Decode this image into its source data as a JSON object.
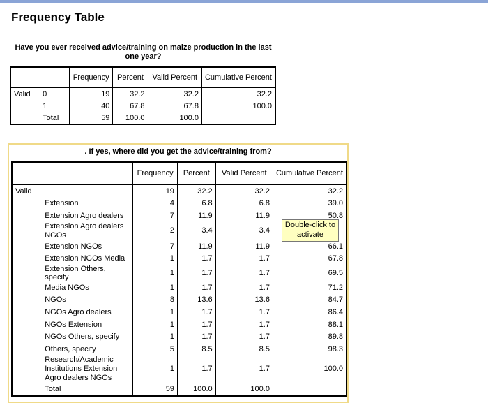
{
  "page_title": "Frequency Table",
  "table1": {
    "title": "Have you ever received advice/training on maize production in the last one year?",
    "headers": {
      "frequency": "Frequency",
      "percent": "Percent",
      "valid_percent": "Valid Percent",
      "cumulative_percent": "Cumulative Percent"
    },
    "group_label": "Valid",
    "rows": [
      {
        "category": "0",
        "frequency": "19",
        "percent": "32.2",
        "valid_percent": "32.2",
        "cumulative_percent": "32.2"
      },
      {
        "category": "1",
        "frequency": "40",
        "percent": "67.8",
        "valid_percent": "67.8",
        "cumulative_percent": "100.0"
      },
      {
        "category": "Total",
        "frequency": "59",
        "percent": "100.0",
        "valid_percent": "100.0",
        "cumulative_percent": ""
      }
    ]
  },
  "table2": {
    "title": ". If yes, where did you get the advice/training from?",
    "headers": {
      "frequency": "Frequency",
      "percent": "Percent",
      "valid_percent": "Valid Percent",
      "cumulative_percent": "Cumulative Percent"
    },
    "group_label": "Valid",
    "rows": [
      {
        "category": "",
        "frequency": "19",
        "percent": "32.2",
        "valid_percent": "32.2",
        "cumulative_percent": "32.2"
      },
      {
        "category": "Extension",
        "frequency": "4",
        "percent": "6.8",
        "valid_percent": "6.8",
        "cumulative_percent": "39.0"
      },
      {
        "category": "Extension Agro dealers",
        "frequency": "7",
        "percent": "11.9",
        "valid_percent": "11.9",
        "cumulative_percent": "50.8"
      },
      {
        "category": "Extension Agro dealers NGOs",
        "frequency": "2",
        "percent": "3.4",
        "valid_percent": "3.4",
        "cumulative_percent": ""
      },
      {
        "category": "Extension NGOs",
        "frequency": "7",
        "percent": "11.9",
        "valid_percent": "11.9",
        "cumulative_percent": "66.1"
      },
      {
        "category": "Extension NGOs Media",
        "frequency": "1",
        "percent": "1.7",
        "valid_percent": "1.7",
        "cumulative_percent": "67.8"
      },
      {
        "category": "Extension Others, specify",
        "frequency": "1",
        "percent": "1.7",
        "valid_percent": "1.7",
        "cumulative_percent": "69.5"
      },
      {
        "category": "Media NGOs",
        "frequency": "1",
        "percent": "1.7",
        "valid_percent": "1.7",
        "cumulative_percent": "71.2"
      },
      {
        "category": "NGOs",
        "frequency": "8",
        "percent": "13.6",
        "valid_percent": "13.6",
        "cumulative_percent": "84.7"
      },
      {
        "category": "NGOs Agro dealers",
        "frequency": "1",
        "percent": "1.7",
        "valid_percent": "1.7",
        "cumulative_percent": "86.4"
      },
      {
        "category": "NGOs Extension",
        "frequency": "1",
        "percent": "1.7",
        "valid_percent": "1.7",
        "cumulative_percent": "88.1"
      },
      {
        "category": "NGOs Others, specify",
        "frequency": "1",
        "percent": "1.7",
        "valid_percent": "1.7",
        "cumulative_percent": "89.8"
      },
      {
        "category": "Others, specify",
        "frequency": "5",
        "percent": "8.5",
        "valid_percent": "8.5",
        "cumulative_percent": "98.3"
      },
      {
        "category": "Research/Academic Institutions Extension Agro dealers NGOs",
        "frequency": "1",
        "percent": "1.7",
        "valid_percent": "1.7",
        "cumulative_percent": "100.0"
      },
      {
        "category": "Total",
        "frequency": "59",
        "percent": "100.0",
        "valid_percent": "100.0",
        "cumulative_percent": ""
      }
    ]
  },
  "tooltip": {
    "text": "Double-click to activate"
  }
}
